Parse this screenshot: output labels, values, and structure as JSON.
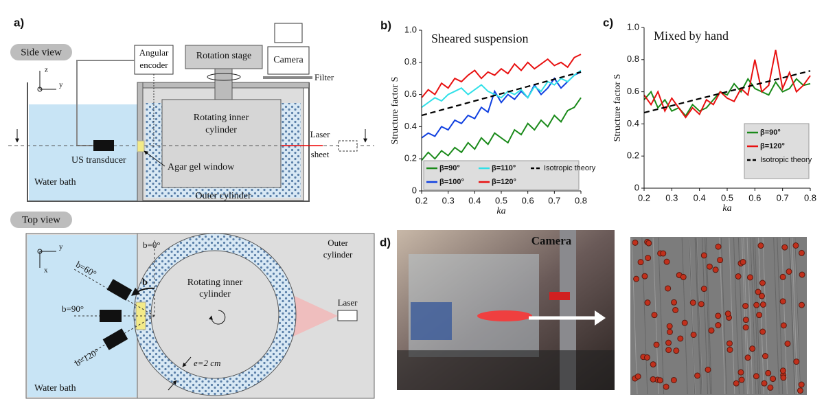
{
  "panel_a": {
    "label": "a)",
    "side_view": {
      "title": "Side view",
      "angular_encoder": [
        "Angular",
        "encoder"
      ],
      "rotation_stage": "Rotation stage",
      "camera": "Camera",
      "filter": "Filter",
      "rotating_inner_cylinder": [
        "Rotating inner",
        "cylinder"
      ],
      "laser_sheet": [
        "Laser",
        "sheet"
      ],
      "us_transducer": "US transducer",
      "agar_gel_window": "Agar gel window",
      "water_bath": "Water bath",
      "outer_cylinder": "Outer cylinder",
      "axis_z": "z",
      "axis_y": "y"
    },
    "top_view": {
      "title": "Top view",
      "angles": [
        "b=0°",
        "b=60°",
        "b=90°",
        "b=120°"
      ],
      "b": "b",
      "outer_cylinder": [
        "Outer",
        "cylinder"
      ],
      "rotating_inner_cylinder": [
        "Rotating inner",
        "cylinder"
      ],
      "laser": "Laser",
      "gap": "e=2 cm",
      "water_bath": "Water bath",
      "axis_y": "y",
      "axis_x": "x"
    }
  },
  "chart_data": [
    {
      "type": "line",
      "label": "b)",
      "title": "Sheared suspension",
      "xlabel": "ka",
      "ylabel": "Structure factor S",
      "x": [
        0.2,
        0.225,
        0.25,
        0.275,
        0.3,
        0.325,
        0.35,
        0.375,
        0.4,
        0.425,
        0.45,
        0.475,
        0.5,
        0.525,
        0.55,
        0.575,
        0.6,
        0.625,
        0.65,
        0.675,
        0.7,
        0.725,
        0.75,
        0.775,
        0.8
      ],
      "xlim": [
        0.2,
        0.8
      ],
      "xticks": [
        0.2,
        0.3,
        0.4,
        0.5,
        0.6,
        0.7,
        0.8
      ],
      "ylim": [
        0,
        1
      ],
      "yticks": [
        0,
        0.2,
        0.4,
        0.6,
        0.8,
        {
          "value": 1,
          "label": "1.0"
        }
      ],
      "legend": "bottom",
      "series": [
        {
          "name": "β=90°",
          "color": "#1a8a1a",
          "values": [
            0.19,
            0.24,
            0.2,
            0.25,
            0.22,
            0.27,
            0.24,
            0.3,
            0.26,
            0.33,
            0.29,
            0.36,
            0.33,
            0.3,
            0.38,
            0.35,
            0.42,
            0.38,
            0.44,
            0.4,
            0.47,
            0.43,
            0.5,
            0.52,
            0.58
          ]
        },
        {
          "name": "β=100°",
          "color": "#1040e0",
          "values": [
            0.33,
            0.36,
            0.34,
            0.4,
            0.38,
            0.44,
            0.42,
            0.47,
            0.45,
            0.52,
            0.49,
            0.62,
            0.55,
            0.6,
            0.57,
            0.62,
            0.58,
            0.66,
            0.6,
            0.64,
            0.7,
            0.64,
            0.68,
            0.72,
            0.74
          ]
        },
        {
          "name": "β=110°",
          "color": "#30e0e8",
          "values": [
            0.52,
            0.55,
            0.58,
            0.56,
            0.6,
            0.62,
            0.64,
            0.6,
            0.63,
            0.66,
            0.62,
            0.6,
            0.58,
            0.62,
            0.6,
            0.63,
            0.58,
            0.65,
            0.62,
            0.68,
            0.66,
            0.7,
            0.68,
            0.72,
            0.75
          ]
        },
        {
          "name": "β=120°",
          "color": "#e81010",
          "values": [
            0.58,
            0.63,
            0.6,
            0.67,
            0.64,
            0.7,
            0.68,
            0.72,
            0.75,
            0.7,
            0.74,
            0.72,
            0.76,
            0.73,
            0.79,
            0.75,
            0.8,
            0.76,
            0.79,
            0.82,
            0.78,
            0.8,
            0.77,
            0.83,
            0.85
          ]
        },
        {
          "name": "Isotropic theory",
          "color": "#000000",
          "dashed": true,
          "x": [
            0.2,
            0.8
          ],
          "values": [
            0.47,
            0.74
          ]
        }
      ]
    },
    {
      "type": "line",
      "label": "c)",
      "title": "Mixed by hand",
      "xlabel": "ka",
      "ylabel": "Structure factor S",
      "x": [
        0.2,
        0.225,
        0.25,
        0.275,
        0.3,
        0.325,
        0.35,
        0.375,
        0.4,
        0.425,
        0.45,
        0.475,
        0.5,
        0.525,
        0.55,
        0.575,
        0.6,
        0.625,
        0.65,
        0.675,
        0.7,
        0.725,
        0.75,
        0.775,
        0.8
      ],
      "xlim": [
        0.2,
        0.8
      ],
      "xticks": [
        0.2,
        0.3,
        0.4,
        0.5,
        0.6,
        0.7,
        0.8
      ],
      "ylim": [
        0,
        1
      ],
      "yticks": [
        0,
        0.2,
        0.4,
        0.6,
        0.8,
        {
          "value": 1,
          "label": "1.0"
        }
      ],
      "legend": "right",
      "series": [
        {
          "name": "β=90°",
          "color": "#1a8a1a",
          "values": [
            0.55,
            0.6,
            0.5,
            0.55,
            0.48,
            0.5,
            0.45,
            0.52,
            0.48,
            0.5,
            0.55,
            0.6,
            0.58,
            0.65,
            0.6,
            0.68,
            0.62,
            0.6,
            0.58,
            0.66,
            0.6,
            0.62,
            0.68,
            0.64,
            0.65
          ]
        },
        {
          "name": "β=120°",
          "color": "#e81010",
          "values": [
            0.58,
            0.52,
            0.6,
            0.48,
            0.56,
            0.5,
            0.44,
            0.5,
            0.46,
            0.55,
            0.52,
            0.6,
            0.56,
            0.54,
            0.62,
            0.58,
            0.8,
            0.6,
            0.64,
            0.86,
            0.62,
            0.72,
            0.6,
            0.64,
            0.7
          ]
        },
        {
          "name": "Isotropic theory",
          "color": "#000000",
          "dashed": true,
          "x": [
            0.2,
            0.8
          ],
          "values": [
            0.47,
            0.73
          ]
        }
      ]
    }
  ],
  "panel_d": {
    "label": "d)",
    "camera": "Camera"
  }
}
